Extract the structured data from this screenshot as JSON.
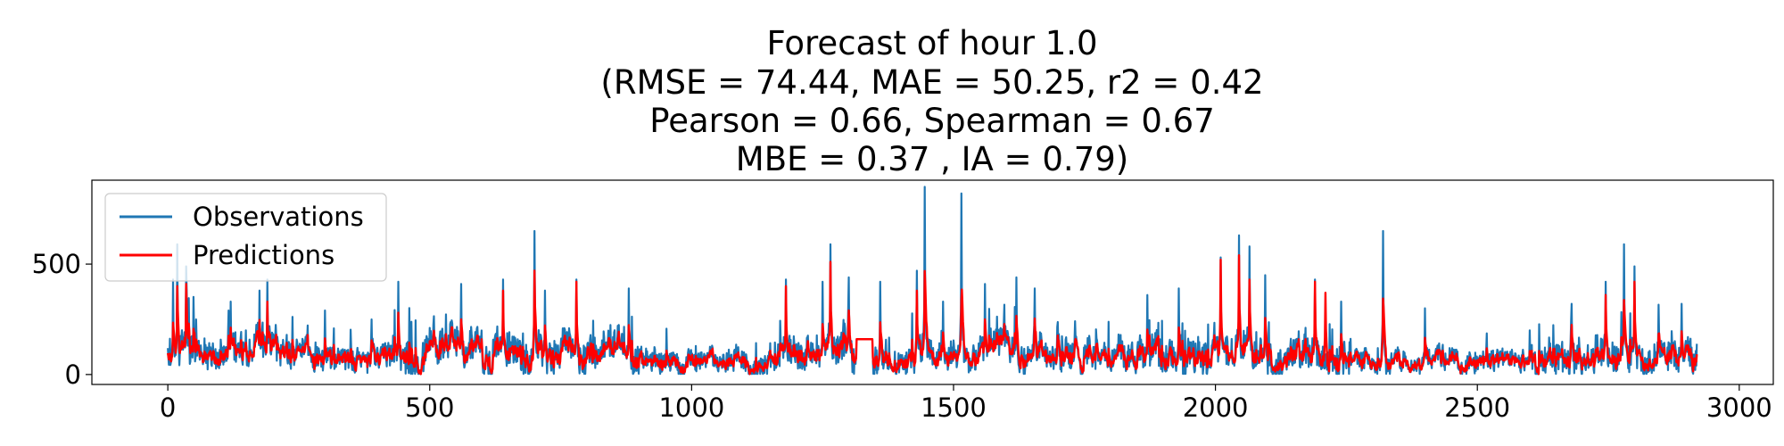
{
  "chart_data": {
    "type": "line",
    "title": [
      "Forecast of hour 1.0",
      "(RMSE = 74.44, MAE = 50.25, r2 = 0.42",
      "Pearson = 0.66, Spearman = 0.67",
      "MBE = 0.37 , IA = 0.79)"
    ],
    "xlabel": "",
    "ylabel": "",
    "xlim": [
      -145,
      3065
    ],
    "ylim": [
      -45,
      880
    ],
    "xticks": [
      0,
      500,
      1000,
      1500,
      2000,
      2500,
      3000
    ],
    "yticks": [
      0,
      500
    ],
    "legend": {
      "placement": "top-left",
      "entries": [
        "Observations",
        "Predictions"
      ]
    },
    "n_points": 2920,
    "series": [
      {
        "name": "Observations",
        "color": "#1f77b4",
        "baseline": 85,
        "spikes": [
          [
            10,
            430
          ],
          [
            18,
            590
          ],
          [
            35,
            490
          ],
          [
            120,
            330
          ],
          [
            175,
            380
          ],
          [
            190,
            430
          ],
          [
            300,
            290
          ],
          [
            440,
            420
          ],
          [
            560,
            410
          ],
          [
            640,
            430
          ],
          [
            700,
            650
          ],
          [
            720,
            380
          ],
          [
            780,
            430
          ],
          [
            880,
            390
          ],
          [
            1180,
            430
          ],
          [
            1250,
            420
          ],
          [
            1265,
            590
          ],
          [
            1300,
            440
          ],
          [
            1330,
            300
          ],
          [
            1360,
            420
          ],
          [
            1430,
            470
          ],
          [
            1445,
            850
          ],
          [
            1480,
            330
          ],
          [
            1515,
            820
          ],
          [
            1560,
            410
          ],
          [
            1620,
            440
          ],
          [
            1655,
            390
          ],
          [
            1870,
            360
          ],
          [
            1930,
            390
          ],
          [
            2010,
            530
          ],
          [
            2045,
            630
          ],
          [
            2065,
            580
          ],
          [
            2095,
            450
          ],
          [
            2190,
            430
          ],
          [
            2240,
            330
          ],
          [
            2320,
            650
          ],
          [
            2400,
            300
          ],
          [
            2600,
            200
          ],
          [
            2680,
            320
          ],
          [
            2745,
            420
          ],
          [
            2780,
            590
          ],
          [
            2800,
            490
          ],
          [
            2890,
            320
          ]
        ],
        "quiet_ranges": [
          [
            1315,
            1345
          ]
        ]
      },
      {
        "name": "Predictions",
        "color": "#ff0000",
        "baseline": 85,
        "peaks": [
          [
            18,
            400
          ],
          [
            35,
            410
          ],
          [
            190,
            330
          ],
          [
            440,
            280
          ],
          [
            640,
            380
          ],
          [
            700,
            470
          ],
          [
            780,
            420
          ],
          [
            1180,
            400
          ],
          [
            1265,
            510
          ],
          [
            1430,
            380
          ],
          [
            1515,
            340
          ],
          [
            2010,
            520
          ],
          [
            2045,
            540
          ],
          [
            2065,
            430
          ],
          [
            2190,
            420
          ],
          [
            2210,
            370
          ],
          [
            2745,
            360
          ],
          [
            2800,
            420
          ]
        ],
        "flat_segments": [
          [
            1315,
            1345,
            160
          ]
        ]
      }
    ]
  }
}
